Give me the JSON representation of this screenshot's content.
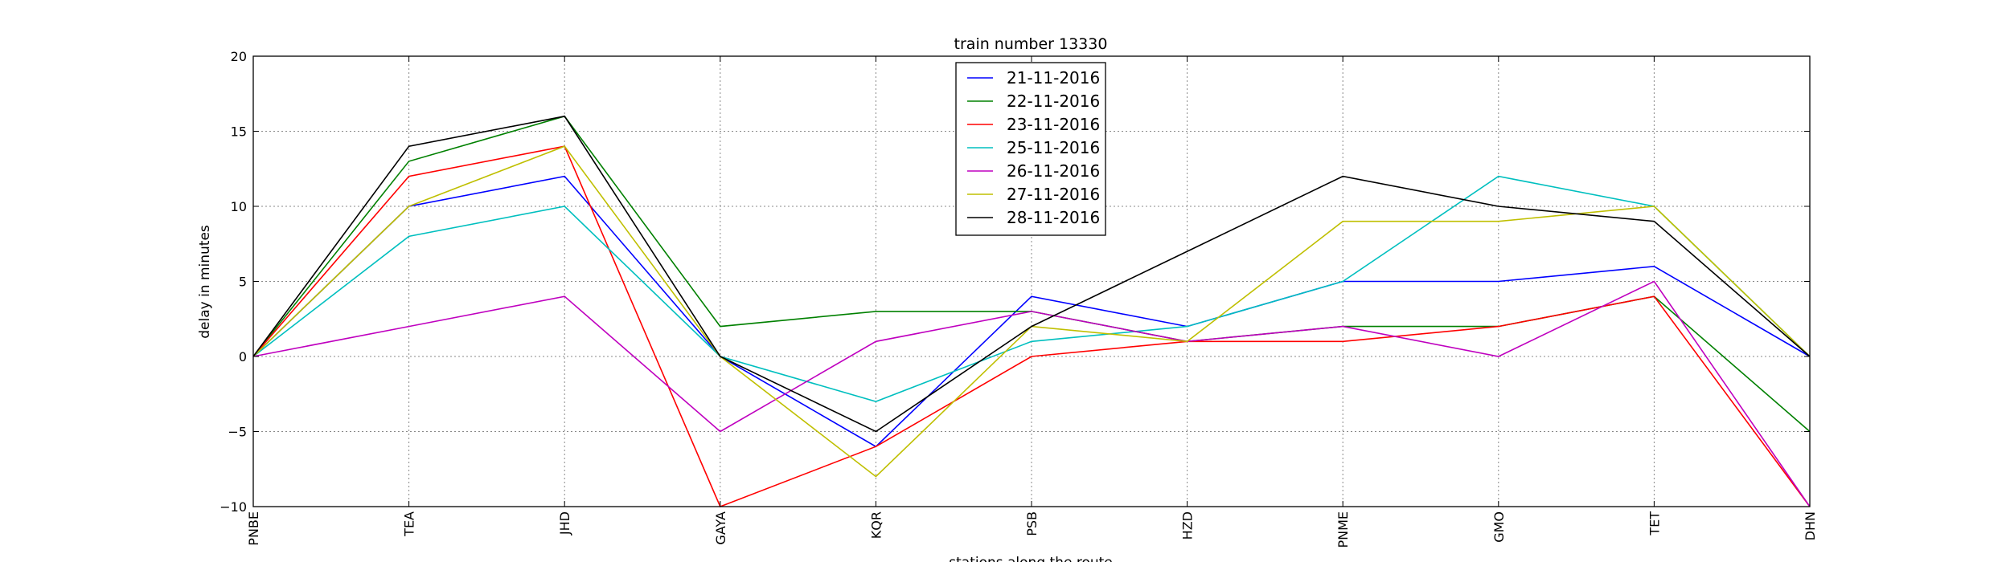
{
  "chart_data": {
    "type": "line",
    "title": "train number 13330",
    "xlabel": "stations along the route",
    "ylabel": "delay in minutes",
    "categories": [
      "PNBE",
      "TEA",
      "JHD",
      "GAYA",
      "KQR",
      "PSB",
      "HZD",
      "PNME",
      "GMO",
      "TET",
      "DHN"
    ],
    "ylim": [
      -10,
      20
    ],
    "yticks": [
      "−10",
      "−5",
      "0",
      "5",
      "10",
      "15",
      "20"
    ],
    "grid": true,
    "legend_position": "top-center",
    "series": [
      {
        "name": "21-11-2016",
        "color": "#0000ff",
        "values": [
          0,
          10,
          12,
          0,
          -6,
          4,
          2,
          5,
          5,
          6,
          0
        ]
      },
      {
        "name": "22-11-2016",
        "color": "#008000",
        "values": [
          0,
          13,
          16,
          2,
          3,
          3,
          1,
          2,
          2,
          4,
          -5
        ]
      },
      {
        "name": "23-11-2016",
        "color": "#ff0000",
        "values": [
          0,
          12,
          14,
          -10,
          -6,
          0,
          1,
          1,
          2,
          4,
          -10
        ]
      },
      {
        "name": "25-11-2016",
        "color": "#00bfbf",
        "values": [
          0,
          8,
          10,
          0,
          -3,
          1,
          2,
          5,
          12,
          10,
          0
        ]
      },
      {
        "name": "26-11-2016",
        "color": "#bf00bf",
        "values": [
          0,
          2,
          4,
          -5,
          1,
          3,
          1,
          2,
          0,
          5,
          -10
        ]
      },
      {
        "name": "27-11-2016",
        "color": "#bfbf00",
        "values": [
          0,
          10,
          14,
          0,
          -8,
          2,
          1,
          9,
          9,
          10,
          0
        ]
      },
      {
        "name": "28-11-2016",
        "color": "#000000",
        "values": [
          0,
          14,
          16,
          0,
          -5,
          2,
          7,
          12,
          10,
          9,
          0
        ]
      }
    ]
  }
}
